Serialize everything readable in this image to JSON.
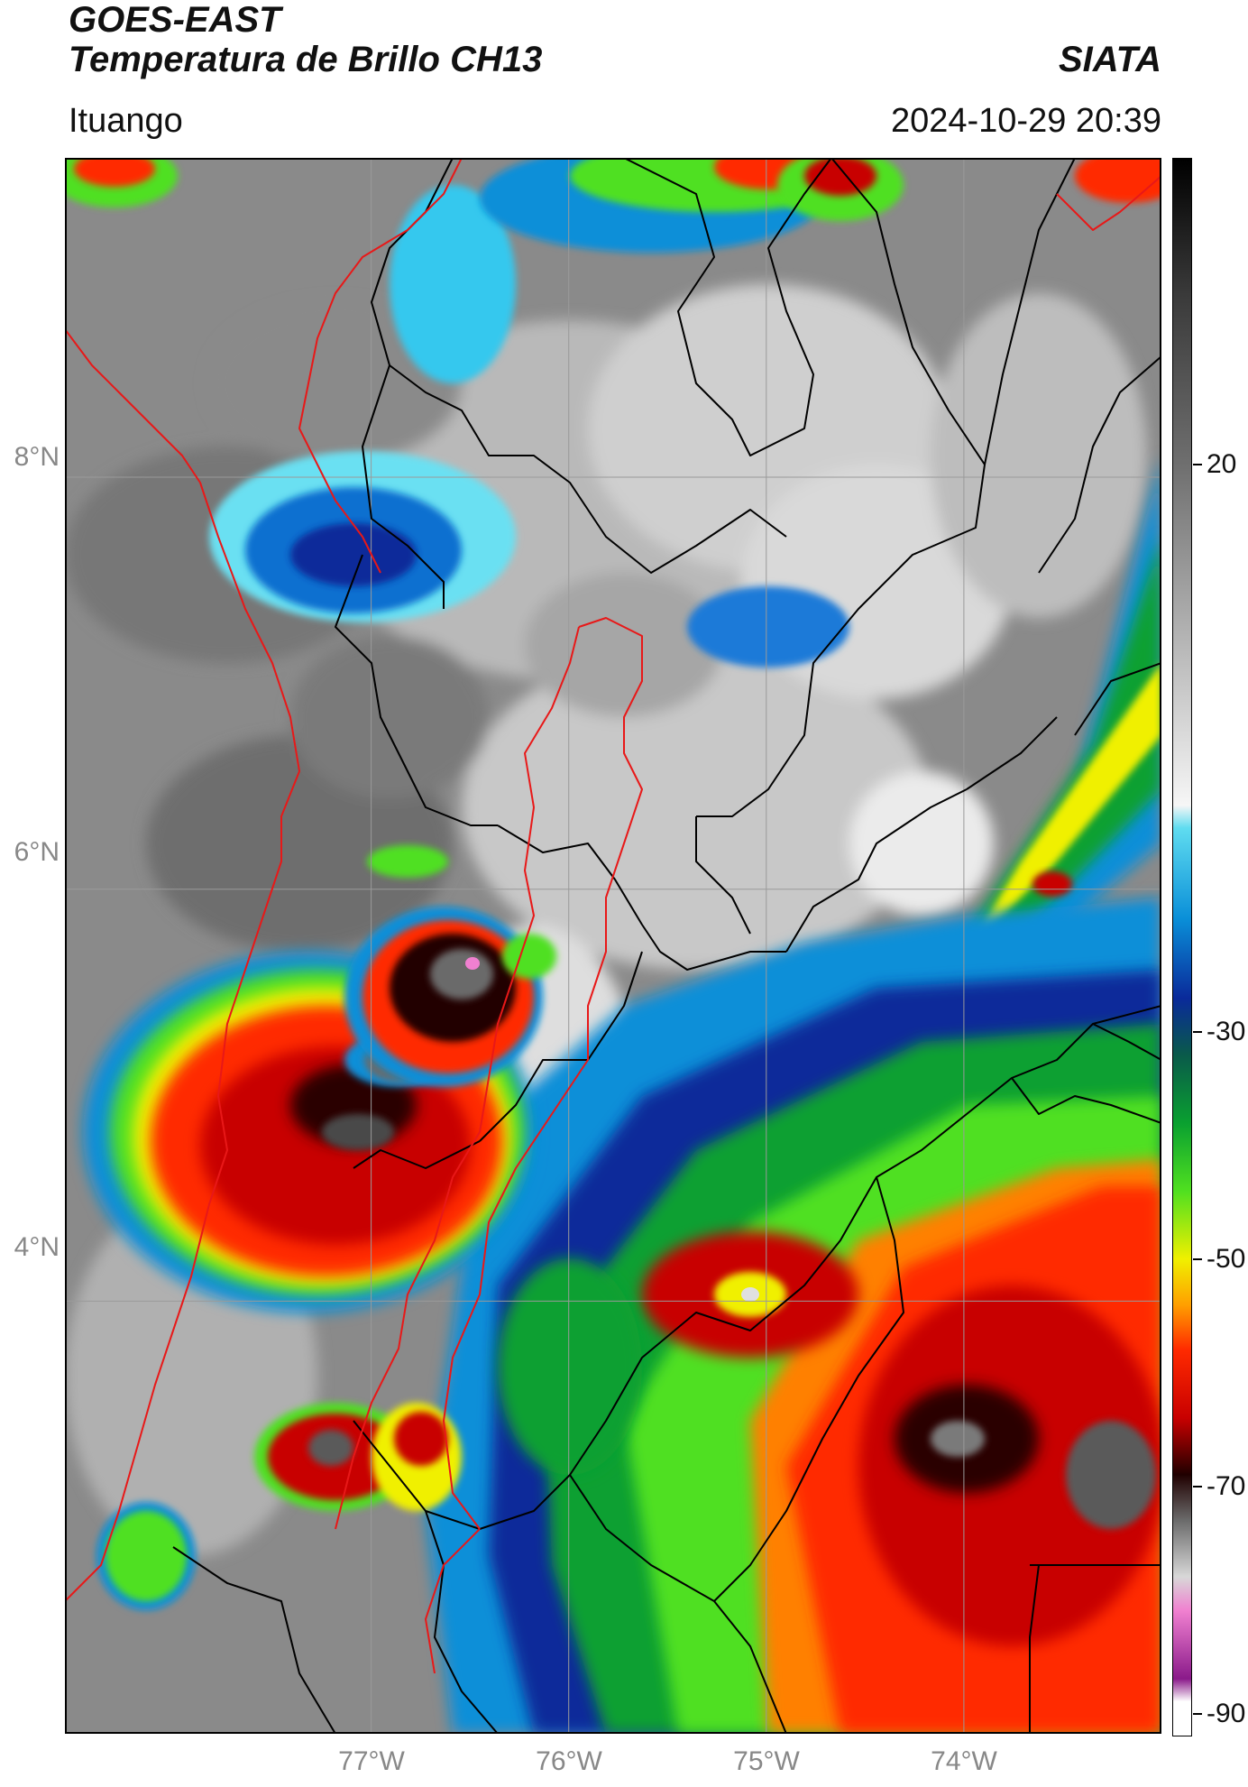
{
  "header": {
    "line1": "GOES-EAST",
    "line2": "Temperatura de Brillo CH13",
    "org": "SIATA",
    "region": "Ituango",
    "timestamp": "2024-10-29 20:39"
  },
  "axes": {
    "lat_labels": [
      {
        "value": 8,
        "text": "8°N"
      },
      {
        "value": 6,
        "text": "6°N"
      },
      {
        "value": 4,
        "text": "4°N"
      }
    ],
    "lon_labels": [
      {
        "value": -77,
        "text": "77°W"
      },
      {
        "value": -76,
        "text": "76°W"
      },
      {
        "value": -75,
        "text": "75°W"
      },
      {
        "value": -74,
        "text": "74°W"
      }
    ],
    "lon_range": [
      -78.55,
      -73.0
    ],
    "lat_range": [
      1.9,
      9.55
    ]
  },
  "colorbar": {
    "min": -92,
    "max": 47,
    "ticks": [
      {
        "value": 20,
        "text": "20"
      },
      {
        "value": -30,
        "text": "-30"
      },
      {
        "value": -50,
        "text": "-50"
      },
      {
        "value": -70,
        "text": "-70"
      },
      {
        "value": -90,
        "text": "-90"
      }
    ],
    "stops": [
      {
        "value": 47,
        "color": "#000000"
      },
      {
        "value": 35,
        "color": "#3a3a3a"
      },
      {
        "value": 20,
        "color": "#6f6f6f"
      },
      {
        "value": 5,
        "color": "#b3b3b3"
      },
      {
        "value": -10,
        "color": "#f6f6f6"
      },
      {
        "value": -12,
        "color": "#5fdcf0"
      },
      {
        "value": -20,
        "color": "#0a8fd8"
      },
      {
        "value": -27,
        "color": "#0a2a9a"
      },
      {
        "value": -32,
        "color": "#0a5a4a"
      },
      {
        "value": -38,
        "color": "#0aa030"
      },
      {
        "value": -44,
        "color": "#50e020"
      },
      {
        "value": -50,
        "color": "#f0f000"
      },
      {
        "value": -54,
        "color": "#ffa000"
      },
      {
        "value": -58,
        "color": "#ff2a00"
      },
      {
        "value": -64,
        "color": "#c80000"
      },
      {
        "value": -69,
        "color": "#200000"
      },
      {
        "value": -73,
        "color": "#6a6a6a"
      },
      {
        "value": -78,
        "color": "#d8d8d8"
      },
      {
        "value": -81,
        "color": "#f080d0"
      },
      {
        "value": -87,
        "color": "#8a1a8a"
      },
      {
        "value": -89,
        "color": "#ffffff"
      }
    ]
  },
  "colors": {
    "state_border": "#000000",
    "basin_border": "#e81818",
    "grid": "#9a9a9a"
  }
}
